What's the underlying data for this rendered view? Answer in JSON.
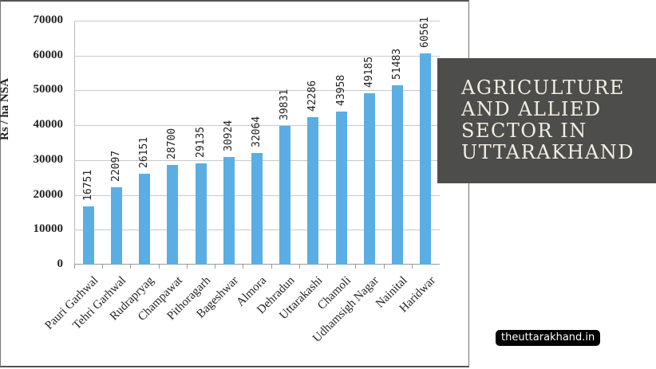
{
  "title_overlay": {
    "lines": [
      "AGRICULTURE",
      "AND ALLIED",
      "SECTOR IN",
      "UTTARAKHAND"
    ],
    "bg_color": "#4d4d4b",
    "text_color": "#f1efe2"
  },
  "brand": {
    "label": "theuttarakhand.in"
  },
  "chart_data": {
    "type": "bar",
    "title": "",
    "xlabel": "",
    "ylabel": "Rs / ha NSA",
    "ylim": [
      0,
      70000
    ],
    "yticks": [
      0,
      10000,
      20000,
      30000,
      40000,
      50000,
      60000,
      70000
    ],
    "grid": true,
    "legend": "none",
    "bar_color": "#5aaee3",
    "categories": [
      "Pauri Garhwal",
      "Tehri Garhwal",
      "Rudrapryag",
      "Champawat",
      "Pithoragarh",
      "Bageshwar",
      "Almora",
      "Dehradun",
      "Uttarakashi",
      "Chamoli",
      "Udhamsigh Nagar",
      "Nainital",
      "Haridwar"
    ],
    "values": [
      16751,
      22097,
      26151,
      28700,
      29135,
      30924,
      32064,
      39831,
      42286,
      43958,
      49185,
      51483,
      60561
    ],
    "data_labels": [
      "16751",
      "22097",
      "26151",
      "28700",
      "29135",
      "30924",
      "32064",
      "39831",
      "42286",
      "43958",
      "49185",
      "51483",
      "60561"
    ]
  }
}
